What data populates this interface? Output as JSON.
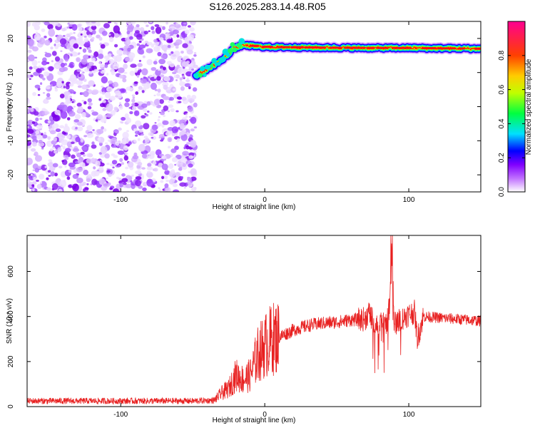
{
  "title": "S126.2025.283.14.48.R05",
  "chart_data": [
    {
      "type": "heatmap",
      "xlabel": "Height of straight line (km)",
      "ylabel": "Frequency (Hz)",
      "xlim": [
        -165,
        150
      ],
      "ylim": [
        -25,
        25
      ],
      "x_ticks": [
        -100,
        0,
        100
      ],
      "y_ticks": [
        -20,
        -10,
        0,
        10,
        20
      ],
      "grid": false,
      "noise_region_x": [
        -165,
        -48
      ],
      "ridge": [
        {
          "x": -48,
          "y": 9
        },
        {
          "x": -40,
          "y": 11
        },
        {
          "x": -32,
          "y": 13
        },
        {
          "x": -26,
          "y": 15
        },
        {
          "x": -22,
          "y": 17
        },
        {
          "x": -15,
          "y": 18
        },
        {
          "x": 0,
          "y": 17.5
        },
        {
          "x": 40,
          "y": 17.3
        },
        {
          "x": 80,
          "y": 17.2
        },
        {
          "x": 100,
          "y": 17.2
        },
        {
          "x": 150,
          "y": 17
        }
      ],
      "colorbar": {
        "label": "Normalized spectral amplitude",
        "range": [
          0,
          1
        ],
        "ticks": [
          "0.0",
          "0.2",
          "0.4",
          "0.6",
          "0.8"
        ],
        "colors": [
          "#ffffff",
          "#a000ff",
          "#0000ff",
          "#00e0ff",
          "#00ff00",
          "#ffff00",
          "#ff8000",
          "#ff0000",
          "#ff0080"
        ]
      }
    },
    {
      "type": "line",
      "xlabel": "Height of straight line (km)",
      "ylabel": "SNR (10 * v/v)",
      "xlim": [
        -165,
        150
      ],
      "ylim": [
        0,
        760
      ],
      "x_ticks": [
        -100,
        0,
        100
      ],
      "y_ticks": [
        0,
        200,
        400,
        600
      ],
      "grid": false,
      "color": "#e82020",
      "series": [
        {
          "x": [
            -165,
            -100,
            -50,
            -35,
            -30,
            -25,
            -20,
            -15,
            -10,
            -5,
            0,
            5,
            10,
            20,
            30,
            40,
            50,
            60,
            65,
            70,
            72,
            75,
            80,
            85,
            87,
            88,
            90,
            92,
            95,
            100,
            104,
            106,
            110,
            120,
            130,
            140,
            150
          ],
          "values": [
            25,
            25,
            25,
            28,
            60,
            80,
            140,
            120,
            140,
            230,
            270,
            300,
            310,
            340,
            360,
            370,
            375,
            385,
            385,
            390,
            420,
            380,
            360,
            380,
            460,
            720,
            360,
            380,
            390,
            410,
            420,
            300,
            400,
            395,
            390,
            385,
            380
          ]
        }
      ]
    }
  ]
}
